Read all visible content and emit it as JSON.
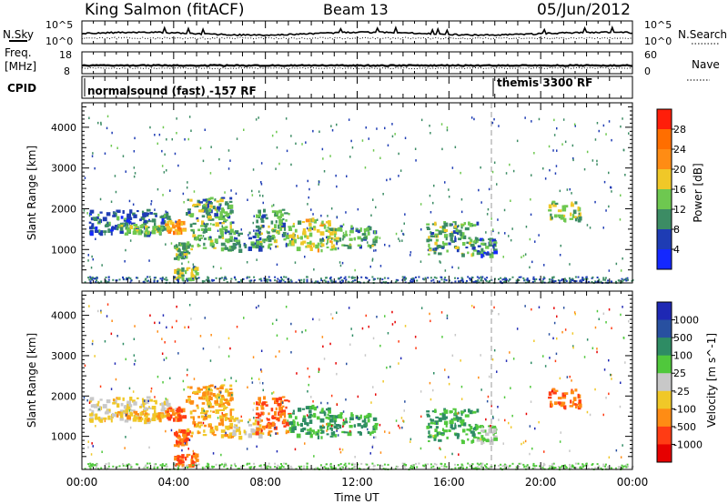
{
  "header": {
    "station": "King Salmon (fitACF)",
    "beam": "Beam 13",
    "date": "05/Jun/2012"
  },
  "noise_panel": {
    "left_label": "N.Sky",
    "right_label": "N.Search",
    "left_ticks": [
      "10^5",
      "10^0"
    ],
    "right_ticks": [
      "10^5",
      "10^0"
    ]
  },
  "freq_panel": {
    "left_label_1": "Freq.",
    "left_label_2": "[MHz]",
    "right_label": "Nave",
    "left_ticks": [
      "18",
      "8"
    ],
    "right_ticks": [
      "60",
      "0"
    ]
  },
  "cpid_panel": {
    "label": "CPID",
    "modes": [
      {
        "name": "normalsound (fast) -157 RF",
        "start_hour": 0
      },
      {
        "name": "themis 3300 RF",
        "start_hour": 18
      }
    ]
  },
  "xaxis": {
    "label": "Time UT",
    "ticks": [
      "00:00",
      "04:00",
      "08:00",
      "12:00",
      "16:00",
      "20:00",
      "00:00"
    ],
    "range_hours": [
      0,
      24
    ]
  },
  "power_panel": {
    "ylabel": "Slant Range [km]",
    "yticks": [
      "1000",
      "2000",
      "3000",
      "4000"
    ],
    "colorbar_label": "Power [dB]",
    "colorbar_ticks": [
      "4",
      "8",
      "12",
      "16",
      "20",
      "24",
      "28"
    ],
    "colors": [
      "#1428ff",
      "#1e3cb4",
      "#3c8c64",
      "#6ec850",
      "#f0c828",
      "#ff8c14",
      "#ff6e00",
      "#ff1e0a"
    ]
  },
  "velocity_panel": {
    "ylabel": "Slant Range [km]",
    "yticks": [
      "1000",
      "2000",
      "3000",
      "4000"
    ],
    "colorbar_label": "Velocity [m s^-1]",
    "colorbar_ticks": [
      "1000",
      "500",
      "100",
      "25",
      "-25",
      "-100",
      "-500",
      "-1000"
    ],
    "colors": [
      "#1e28b4",
      "#2850a0",
      "#2e8c64",
      "#50c83c",
      "#c8c8c8",
      "#f0c828",
      "#ff8c14",
      "#ff3c14",
      "#e60000"
    ]
  },
  "chart_data": {
    "type": "heatmap",
    "x_unit": "hours UT",
    "y_unit": "km",
    "xlim": [
      0,
      24
    ],
    "ylim": [
      180,
      4600
    ],
    "echo_regions": [
      {
        "x": [
          0.3,
          3.8
        ],
        "y": [
          1400,
          2000
        ],
        "power_db": 8,
        "velocity": -25
      },
      {
        "x": [
          1.5,
          3.5
        ],
        "y": [
          1450,
          1650
        ],
        "power_db": 14,
        "velocity": -100
      },
      {
        "x": [
          3.6,
          4.4
        ],
        "y": [
          1450,
          1750
        ],
        "power_db": 22,
        "velocity": -500
      },
      {
        "x": [
          4.0,
          4.6
        ],
        "y": [
          800,
          1200
        ],
        "power_db": 12,
        "velocity": -500
      },
      {
        "x": [
          4.0,
          5.0
        ],
        "y": [
          300,
          600
        ],
        "power_db": 16,
        "velocity": -500
      },
      {
        "x": [
          4.5,
          6.5
        ],
        "y": [
          1000,
          2300
        ],
        "power_db": 12,
        "velocity": -100
      },
      {
        "x": [
          6.5,
          7.8
        ],
        "y": [
          1000,
          1500
        ],
        "power_db": 10,
        "velocity": -25
      },
      {
        "x": [
          7.5,
          9.0
        ],
        "y": [
          1100,
          2000
        ],
        "power_db": 12,
        "velocity": -500
      },
      {
        "x": [
          9.0,
          11.0
        ],
        "y": [
          1000,
          1800
        ],
        "power_db": 16,
        "velocity": 100
      },
      {
        "x": [
          11.0,
          12.8
        ],
        "y": [
          1100,
          1600
        ],
        "power_db": 12,
        "velocity": 100
      },
      {
        "x": [
          15.0,
          17.2
        ],
        "y": [
          900,
          1700
        ],
        "power_db": 12,
        "velocity": 100
      },
      {
        "x": [
          17.2,
          18.0
        ],
        "y": [
          850,
          1300
        ],
        "power_db": 8,
        "velocity": 25
      },
      {
        "x": [
          20.3,
          21.7
        ],
        "y": [
          1750,
          2200
        ],
        "power_db": 14,
        "velocity": -500
      }
    ]
  }
}
